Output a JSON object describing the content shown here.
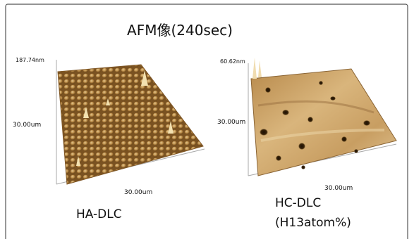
{
  "header": {
    "title": "AFM像(240sec)"
  },
  "panels": [
    {
      "z_scale": "187.74nm",
      "y_scale": "30.00um",
      "x_scale": "30.00um",
      "caption": [
        "HA-DLC"
      ]
    },
    {
      "z_scale": "60.62nm",
      "y_scale": "30.00um",
      "x_scale": "30.00um",
      "caption": [
        "HC-DLC",
        "(H13atom%)"
      ]
    }
  ]
}
